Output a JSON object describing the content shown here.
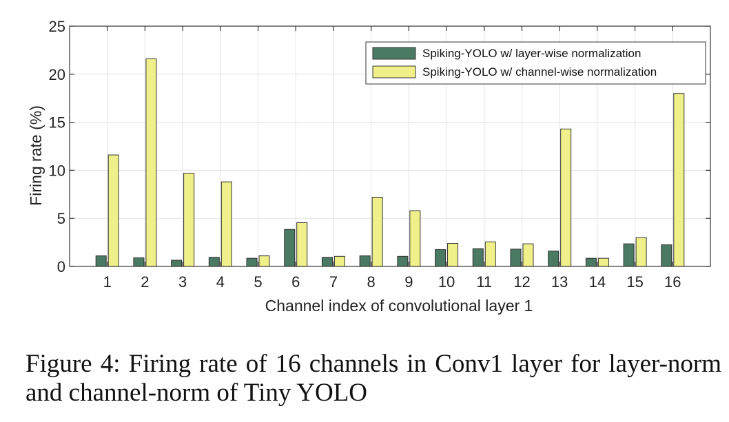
{
  "chart_data": {
    "type": "bar",
    "categories": [
      "1",
      "2",
      "3",
      "4",
      "5",
      "6",
      "7",
      "8",
      "9",
      "10",
      "11",
      "12",
      "13",
      "14",
      "15",
      "16"
    ],
    "series": [
      {
        "name": "Spiking-YOLO w/ layer-wise normalization",
        "color": "#4a7a64",
        "values": [
          1.1,
          0.9,
          0.65,
          0.95,
          0.85,
          3.85,
          0.95,
          1.1,
          1.05,
          1.75,
          1.85,
          1.8,
          1.6,
          0.85,
          2.35,
          2.25
        ]
      },
      {
        "name": "Spiking-YOLO w/ channel-wise normalization",
        "color": "#f0f08a",
        "values": [
          11.6,
          21.6,
          9.7,
          8.8,
          1.1,
          4.55,
          1.05,
          7.2,
          5.8,
          2.4,
          2.55,
          2.35,
          14.3,
          0.85,
          3.0,
          18.0
        ]
      }
    ],
    "xlabel": "Channel index of convolutional layer 1",
    "ylabel": "Firing rate (%)",
    "ylim": [
      0,
      25
    ],
    "yticks": [
      "0",
      "5",
      "10",
      "15",
      "20",
      "25"
    ],
    "grid": true,
    "legend_position": "top-right"
  },
  "caption": "Figure 4: Firing rate of 16 channels in Conv1 layer for layer-norm and channel-norm of Tiny YOLO"
}
